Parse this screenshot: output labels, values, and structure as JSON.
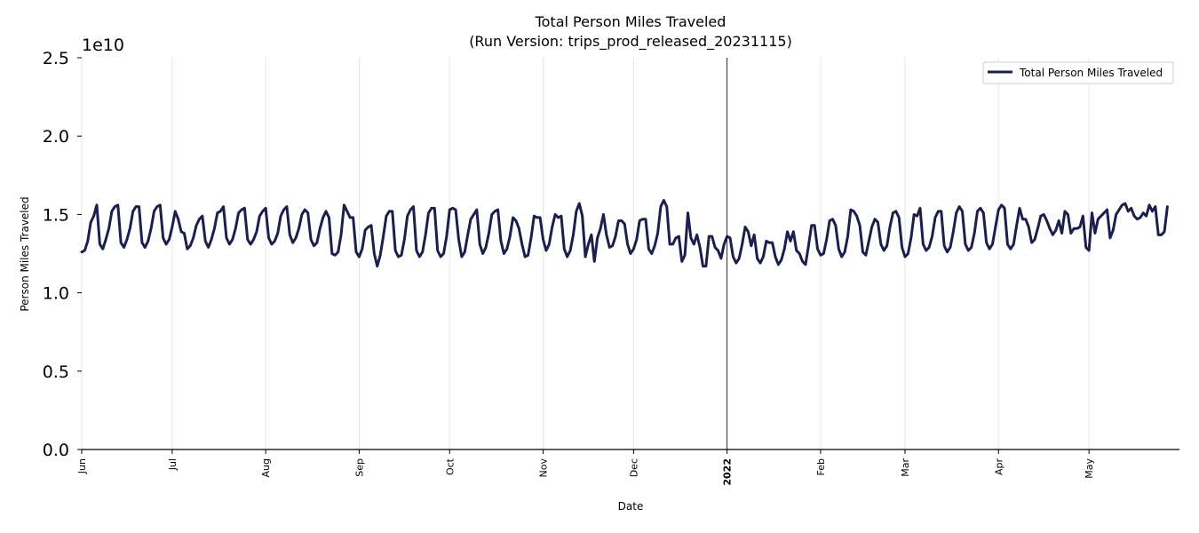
{
  "chart_data": {
    "type": "line",
    "title": "Total Person Miles Traveled",
    "subtitle": "(Run Version: trips_prod_released_20231115)",
    "xlabel": "Date",
    "ylabel": "Person Miles Traveled",
    "y_offset_label": "1e10",
    "x_range": [
      "2021-06-01",
      "2022-05-31"
    ],
    "ylim": [
      0,
      2.5
    ],
    "y_unit_multiplier": 10000000000,
    "y_ticks": [
      {
        "value": 0.0,
        "label": "0.0"
      },
      {
        "value": 0.5,
        "label": "0.5"
      },
      {
        "value": 1.0,
        "label": "1.0"
      },
      {
        "value": 1.5,
        "label": "1.5"
      },
      {
        "value": 2.0,
        "label": "2.0"
      },
      {
        "value": 2.5,
        "label": "2.5"
      }
    ],
    "x_ticks": [
      {
        "date": "2021-06-01",
        "label": "Jun",
        "bold": false
      },
      {
        "date": "2021-07-01",
        "label": "Jul",
        "bold": false
      },
      {
        "date": "2021-08-01",
        "label": "Aug",
        "bold": false
      },
      {
        "date": "2021-09-01",
        "label": "Sep",
        "bold": false
      },
      {
        "date": "2021-10-01",
        "label": "Oct",
        "bold": false
      },
      {
        "date": "2021-11-01",
        "label": "Nov",
        "bold": false
      },
      {
        "date": "2021-12-01",
        "label": "Dec",
        "bold": false
      },
      {
        "date": "2022-01-01",
        "label": "2022",
        "bold": true
      },
      {
        "date": "2022-02-01",
        "label": "Feb",
        "bold": false
      },
      {
        "date": "2022-03-01",
        "label": "Mar",
        "bold": false
      },
      {
        "date": "2022-04-01",
        "label": "Apr",
        "bold": false
      },
      {
        "date": "2022-05-01",
        "label": "May",
        "bold": false
      }
    ],
    "year_marker_date": "2022-01-01",
    "grid": "vertical",
    "legend": "top-right",
    "series": [
      {
        "name": "Total Person Miles Traveled",
        "color": "#1c1f4e",
        "start_date": "2021-06-01",
        "values": [
          1.26,
          1.27,
          1.33,
          1.45,
          1.49,
          1.56,
          1.31,
          1.28,
          1.34,
          1.41,
          1.52,
          1.55,
          1.56,
          1.32,
          1.29,
          1.34,
          1.41,
          1.52,
          1.55,
          1.55,
          1.32,
          1.29,
          1.33,
          1.41,
          1.52,
          1.55,
          1.56,
          1.35,
          1.31,
          1.34,
          1.42,
          1.52,
          1.47,
          1.39,
          1.38,
          1.28,
          1.3,
          1.35,
          1.43,
          1.47,
          1.49,
          1.33,
          1.29,
          1.34,
          1.41,
          1.51,
          1.52,
          1.55,
          1.35,
          1.31,
          1.34,
          1.41,
          1.51,
          1.53,
          1.54,
          1.34,
          1.31,
          1.34,
          1.39,
          1.49,
          1.52,
          1.54,
          1.35,
          1.31,
          1.33,
          1.38,
          1.49,
          1.53,
          1.55,
          1.37,
          1.32,
          1.35,
          1.41,
          1.5,
          1.53,
          1.51,
          1.34,
          1.3,
          1.32,
          1.41,
          1.48,
          1.52,
          1.48,
          1.25,
          1.24,
          1.26,
          1.37,
          1.56,
          1.52,
          1.48,
          1.48,
          1.26,
          1.23,
          1.28,
          1.4,
          1.42,
          1.43,
          1.25,
          1.17,
          1.24,
          1.36,
          1.49,
          1.52,
          1.52,
          1.27,
          1.23,
          1.24,
          1.34,
          1.49,
          1.53,
          1.55,
          1.27,
          1.23,
          1.26,
          1.37,
          1.51,
          1.54,
          1.54,
          1.27,
          1.23,
          1.25,
          1.36,
          1.53,
          1.54,
          1.53,
          1.34,
          1.23,
          1.26,
          1.37,
          1.47,
          1.5,
          1.53,
          1.31,
          1.25,
          1.29,
          1.38,
          1.5,
          1.52,
          1.53,
          1.33,
          1.25,
          1.28,
          1.36,
          1.48,
          1.46,
          1.41,
          1.31,
          1.23,
          1.24,
          1.35,
          1.49,
          1.48,
          1.48,
          1.34,
          1.27,
          1.31,
          1.42,
          1.5,
          1.48,
          1.49,
          1.28,
          1.23,
          1.27,
          1.37,
          1.52,
          1.57,
          1.49,
          1.23,
          1.31,
          1.37,
          1.2,
          1.35,
          1.41,
          1.5,
          1.37,
          1.29,
          1.3,
          1.36,
          1.46,
          1.46,
          1.44,
          1.31,
          1.25,
          1.28,
          1.34,
          1.46,
          1.47,
          1.47,
          1.28,
          1.25,
          1.3,
          1.38,
          1.55,
          1.59,
          1.55,
          1.31,
          1.31,
          1.35,
          1.36,
          1.2,
          1.24,
          1.51,
          1.35,
          1.31,
          1.37,
          1.29,
          1.17,
          1.17,
          1.36,
          1.36,
          1.29,
          1.27,
          1.22,
          1.31,
          1.36,
          1.35,
          1.23,
          1.19,
          1.22,
          1.31,
          1.42,
          1.39,
          1.3,
          1.37,
          1.22,
          1.19,
          1.23,
          1.33,
          1.32,
          1.32,
          1.23,
          1.18,
          1.21,
          1.28,
          1.39,
          1.33,
          1.39,
          1.27,
          1.25,
          1.2,
          1.18,
          1.3,
          1.43,
          1.43,
          1.28,
          1.24,
          1.25,
          1.34,
          1.46,
          1.47,
          1.43,
          1.28,
          1.23,
          1.26,
          1.36,
          1.53,
          1.52,
          1.49,
          1.43,
          1.26,
          1.24,
          1.33,
          1.42,
          1.47,
          1.45,
          1.31,
          1.27,
          1.3,
          1.42,
          1.51,
          1.52,
          1.48,
          1.29,
          1.23,
          1.25,
          1.35,
          1.5,
          1.49,
          1.54,
          1.31,
          1.27,
          1.29,
          1.36,
          1.48,
          1.52,
          1.52,
          1.3,
          1.26,
          1.29,
          1.39,
          1.51,
          1.55,
          1.52,
          1.31,
          1.27,
          1.29,
          1.38,
          1.52,
          1.54,
          1.51,
          1.32,
          1.28,
          1.31,
          1.42,
          1.53,
          1.56,
          1.54,
          1.31,
          1.28,
          1.31,
          1.43,
          1.54,
          1.47,
          1.47,
          1.42,
          1.32,
          1.34,
          1.41,
          1.49,
          1.5,
          1.46,
          1.41,
          1.37,
          1.4,
          1.46,
          1.38,
          1.52,
          1.5,
          1.38,
          1.41,
          1.41,
          1.42,
          1.49,
          1.29,
          1.27,
          1.51,
          1.38,
          1.47,
          1.49,
          1.51,
          1.53,
          1.35,
          1.4,
          1.5,
          1.53,
          1.56,
          1.57,
          1.52,
          1.54,
          1.49,
          1.47,
          1.48,
          1.51,
          1.49,
          1.56,
          1.52,
          1.55,
          1.37,
          1.37,
          1.39,
          1.55
        ]
      }
    ]
  }
}
